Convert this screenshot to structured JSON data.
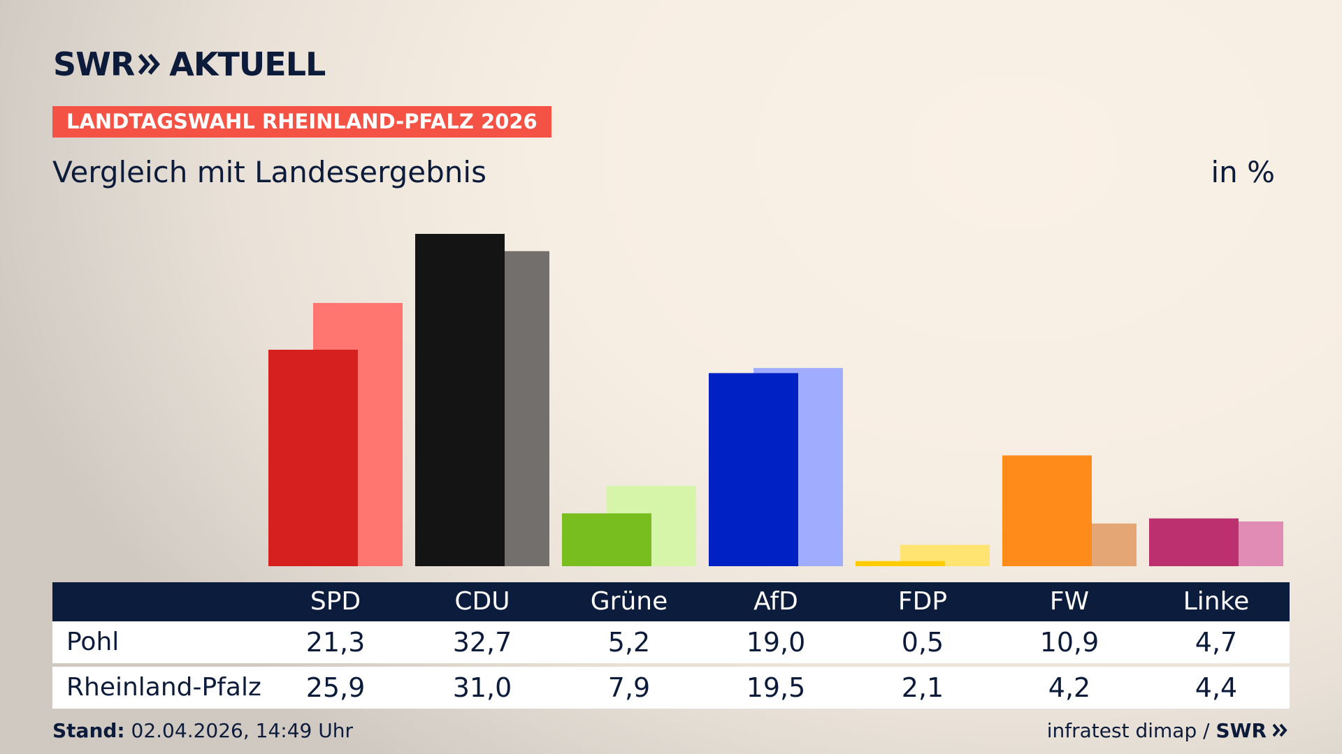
{
  "header": {
    "logo_text": "SWR",
    "logo_suffix": "AKTUELL",
    "badge": "LANDTAGSWAHL RHEINLAND-PFALZ 2026",
    "subtitle": "Vergleich mit Landesergebnis",
    "unit": "in %"
  },
  "footer": {
    "stand_label": "Stand:",
    "stand_value": "02.04.2026, 14:49 Uhr",
    "source": "infratest dimap /",
    "source_logo": "SWR"
  },
  "colors": {
    "navy": "#0c1b3a",
    "accent_red": "#f55246"
  },
  "chart_data": {
    "type": "bar",
    "categories": [
      "SPD",
      "CDU",
      "Grüne",
      "AfD",
      "FDP",
      "FW",
      "Linke"
    ],
    "series": [
      {
        "name": "Pohl",
        "values": [
          21.3,
          32.7,
          5.2,
          19.0,
          0.5,
          10.9,
          4.7
        ],
        "colors": [
          "#d61f1f",
          "#141414",
          "#78be1e",
          "#0022c4",
          "#ffcc00",
          "#ff8c1a",
          "#bd3070"
        ]
      },
      {
        "name": "Rheinland-Pfalz",
        "values": [
          25.9,
          31.0,
          7.9,
          19.5,
          2.1,
          4.2,
          4.4
        ],
        "colors": [
          "#ff756f",
          "#726f6c",
          "#d6f5a8",
          "#a0adff",
          "#ffe472",
          "#e3a674",
          "#e18cb5"
        ]
      }
    ],
    "ylim": [
      0,
      32.7
    ],
    "legend": "table-below",
    "grid": false
  }
}
